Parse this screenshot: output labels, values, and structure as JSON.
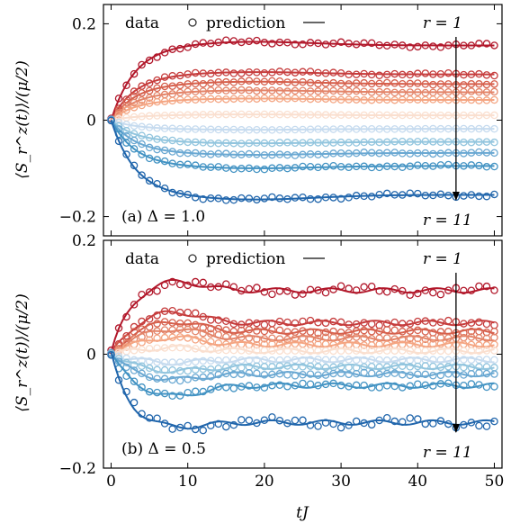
{
  "chart_data": {
    "type": "line",
    "xlabel": "tJ",
    "ylabel": "⟨S_r^z(t)⟩/(μ/2)",
    "xlim": [
      -1,
      51
    ],
    "xticks": [
      0,
      10,
      20,
      30,
      40,
      50
    ],
    "legend": {
      "data_label": "data",
      "prediction_label": "prediction",
      "placement": "top-left"
    },
    "colors": {
      "r1": "#b2182b",
      "r2": "#c63d3d",
      "r3": "#d6604d",
      "r4": "#e38469",
      "r5": "#f4a582",
      "r6": "#fadfcf",
      "r7": "#c6dbef",
      "r8": "#92c5de",
      "r9": "#6aa8d2",
      "r10": "#4393c3",
      "r11": "#2166ac"
    },
    "panels": [
      {
        "label": "(a) Δ = 1.0",
        "ylim": [
          -0.24,
          0.24
        ],
        "yticks": [
          -0.2,
          0,
          0.2
        ],
        "ytick_labels": [
          "−0.2",
          "0",
          "0.2"
        ],
        "r_top": "r = 1",
        "r_bottom": "r = 11",
        "arrow_x": 45,
        "series": [
          {
            "r": 1,
            "plateau": 0.155,
            "peak": 0.163
          },
          {
            "r": 2,
            "plateau": 0.095,
            "peak": 0.1
          },
          {
            "r": 3,
            "plateau": 0.075,
            "peak": 0.08
          },
          {
            "r": 4,
            "plateau": 0.058,
            "peak": 0.062
          },
          {
            "r": 5,
            "plateau": 0.042,
            "peak": 0.045
          },
          {
            "r": 6,
            "plateau": 0.01,
            "peak": 0.012
          },
          {
            "r": 7,
            "plateau": -0.018,
            "peak": -0.02
          },
          {
            "r": 8,
            "plateau": -0.045,
            "peak": -0.048
          },
          {
            "r": 9,
            "plateau": -0.068,
            "peak": -0.072
          },
          {
            "r": 10,
            "plateau": -0.095,
            "peak": -0.1
          },
          {
            "r": 11,
            "plateau": -0.155,
            "peak": -0.165
          }
        ]
      },
      {
        "label": "(b) Δ = 0.5",
        "ylim": [
          -0.2,
          0.2
        ],
        "yticks": [
          -0.2,
          0,
          0.2
        ],
        "ytick_labels": [
          "−0.2",
          "0",
          "0.2"
        ],
        "r_top": "r = 1",
        "r_bottom": "r = 11",
        "arrow_x": 45,
        "series": [
          {
            "r": 1,
            "plateau": 0.112,
            "peak": 0.13
          },
          {
            "r": 2,
            "plateau": 0.055,
            "peak": 0.075
          },
          {
            "r": 3,
            "plateau": 0.04,
            "peak": 0.058
          },
          {
            "r": 4,
            "plateau": 0.028,
            "peak": 0.045
          },
          {
            "r": 5,
            "plateau": 0.017,
            "peak": 0.03
          },
          {
            "r": 6,
            "plateau": 0.006,
            "peak": 0.012
          },
          {
            "r": 7,
            "plateau": -0.01,
            "peak": -0.015
          },
          {
            "r": 8,
            "plateau": -0.022,
            "peak": -0.03
          },
          {
            "r": 9,
            "plateau": -0.035,
            "peak": -0.045
          },
          {
            "r": 10,
            "plateau": -0.055,
            "peak": -0.075
          },
          {
            "r": 11,
            "plateau": -0.12,
            "peak": -0.13
          }
        ]
      }
    ]
  }
}
